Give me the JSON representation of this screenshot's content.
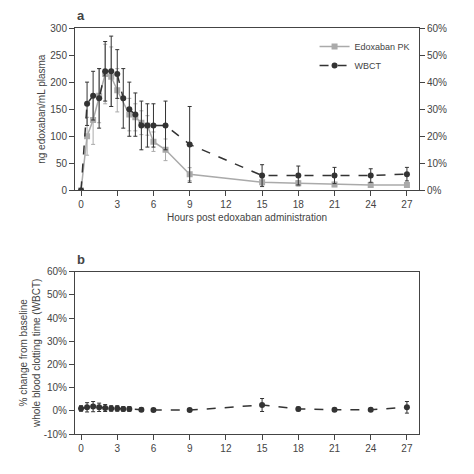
{
  "chart_data": [
    {
      "type": "line",
      "annotations": [
        "a"
      ],
      "xlabel": "Hours post edoxaban administration",
      "ylabel": "ng edoxaban/mL plasma",
      "xlim": [
        -0.5,
        28
      ],
      "xticks": [
        0,
        3,
        6,
        9,
        12,
        15,
        18,
        21,
        24,
        27
      ],
      "ylim": [
        0,
        300
      ],
      "yticks": [
        0,
        50,
        100,
        150,
        200,
        250,
        300
      ],
      "y2lim": [
        0,
        0.6
      ],
      "y2ticks": [
        {
          "value": 0,
          "label": "0%"
        },
        {
          "value": 0.1,
          "label": "10%"
        },
        {
          "value": 0.2,
          "label": "20%"
        },
        {
          "value": 0.3,
          "label": "30%"
        },
        {
          "value": 0.4,
          "label": "40%"
        },
        {
          "value": 0.5,
          "label": "50%"
        },
        {
          "value": 0.6,
          "label": "60%"
        }
      ],
      "grid": false,
      "legend": "upper right",
      "series": [
        {
          "name": "Edoxaban PK",
          "color": "#aaaaaa",
          "marker": "square",
          "line_style": "solid",
          "x": [
            0,
            0.5,
            1,
            1.5,
            2,
            2.5,
            3,
            4,
            4.5,
            5,
            5.5,
            6,
            7,
            9,
            15,
            18,
            21,
            24,
            27
          ],
          "values": [
            0,
            100,
            130,
            175,
            215,
            210,
            185,
            140,
            135,
            125,
            120,
            90,
            75,
            30,
            15,
            13,
            11,
            10,
            10
          ],
          "errors": [
            0,
            35,
            45,
            50,
            55,
            55,
            40,
            30,
            25,
            22,
            18,
            18,
            20,
            12,
            8,
            5,
            4,
            3,
            3
          ]
        },
        {
          "name": "WBCT",
          "color": "#333333",
          "marker": "circle",
          "line_style": "dash",
          "axis": "y2",
          "x": [
            0,
            0.5,
            1,
            1.5,
            2,
            2.5,
            3,
            3.5,
            4,
            4.5,
            5,
            5.5,
            6,
            7,
            9,
            15,
            18,
            21,
            24,
            27
          ],
          "values": [
            0.0,
            0.32,
            0.35,
            0.34,
            0.44,
            0.44,
            0.43,
            0.34,
            0.3,
            0.28,
            0.24,
            0.24,
            0.24,
            0.24,
            0.17,
            0.055,
            0.055,
            0.055,
            0.055,
            0.06
          ],
          "errors": [
            0.0,
            0.08,
            0.09,
            0.11,
            0.11,
            0.13,
            0.09,
            0.11,
            0.1,
            0.08,
            0.09,
            0.08,
            0.08,
            0.09,
            0.14,
            0.04,
            0.035,
            0.03,
            0.025,
            0.025
          ]
        }
      ]
    },
    {
      "type": "line",
      "annotations": [
        "b"
      ],
      "ylabel": "% change from baseline\nwhole blood clotting time (WBCT)",
      "xlim": [
        -0.5,
        28
      ],
      "xticks": [
        0,
        3,
        6,
        9,
        12,
        15,
        18,
        21,
        24,
        27
      ],
      "ylim": [
        -0.1,
        0.6
      ],
      "yticks": [
        {
          "value": -0.1,
          "label": "-10%"
        },
        {
          "value": 0,
          "label": "0%"
        },
        {
          "value": 0.1,
          "label": "10%"
        },
        {
          "value": 0.2,
          "label": "20%"
        },
        {
          "value": 0.3,
          "label": "30%"
        },
        {
          "value": 0.4,
          "label": "40%"
        },
        {
          "value": 0.5,
          "label": "50%"
        },
        {
          "value": 0.6,
          "label": "60%"
        }
      ],
      "grid": false,
      "color": "#333333",
      "marker": "circle",
      "line_style": "dash",
      "x": [
        0,
        0.5,
        1,
        1.5,
        2,
        2.5,
        3,
        3.5,
        4,
        5,
        6,
        9,
        15,
        18,
        21,
        24,
        27
      ],
      "values": [
        0.01,
        0.015,
        0.018,
        0.015,
        0.012,
        0.01,
        0.01,
        0.008,
        0.008,
        0.005,
        0.003,
        0.003,
        0.025,
        0.008,
        0.005,
        0.005,
        0.015
      ],
      "errors": [
        0.012,
        0.02,
        0.022,
        0.018,
        0.015,
        0.012,
        0.012,
        0.01,
        0.01,
        0.008,
        0.006,
        0.006,
        0.028,
        0.008,
        0.006,
        0.006,
        0.025
      ]
    }
  ]
}
